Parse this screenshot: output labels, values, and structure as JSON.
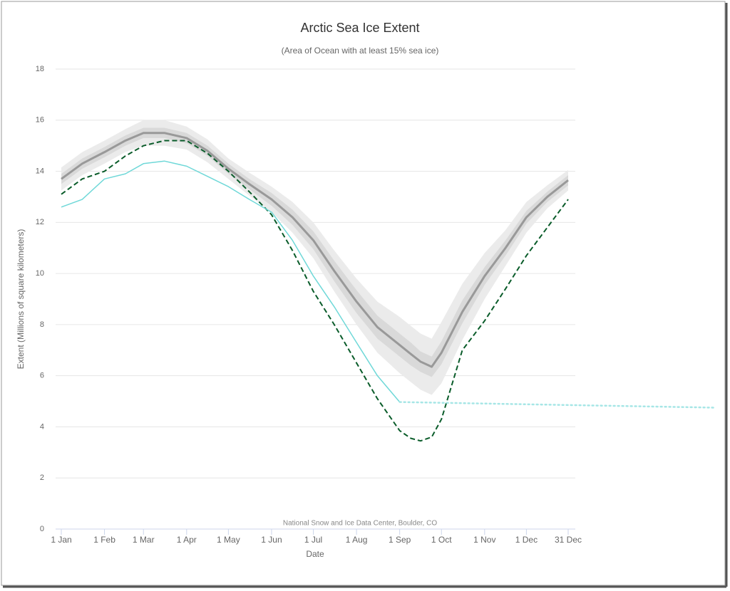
{
  "chart_data": {
    "type": "line",
    "title": "Arctic Sea Ice Extent",
    "subtitle": "(Area of Ocean with at least 15% sea ice)",
    "y_label": "Extent (Millions of square kilometers)",
    "x_label": "Date",
    "credit": "National Snow and Ice Data Center, Boulder, CO",
    "xlim": [
      0,
      364
    ],
    "xticks": [
      {
        "value": 0,
        "label": "1 Jan"
      },
      {
        "value": 31,
        "label": "1 Feb"
      },
      {
        "value": 59,
        "label": "1 Mar"
      },
      {
        "value": 90,
        "label": "1 Apr"
      },
      {
        "value": 120,
        "label": "1 May"
      },
      {
        "value": 151,
        "label": "1 Jun"
      },
      {
        "value": 181,
        "label": "1 Jul"
      },
      {
        "value": 212,
        "label": "1 Aug"
      },
      {
        "value": 243,
        "label": "1 Sep"
      },
      {
        "value": 273,
        "label": "1 Oct"
      },
      {
        "value": 304,
        "label": "1 Nov"
      },
      {
        "value": 334,
        "label": "1 Dec"
      },
      {
        "value": 364,
        "label": "31 Dec"
      }
    ],
    "ylim": [
      0,
      18
    ],
    "yticks": [
      0,
      2,
      4,
      6,
      8,
      10,
      12,
      14,
      16,
      18
    ],
    "grid": true,
    "bands": [
      {
        "color": "#ebebeb",
        "x": [
          0,
          15,
          31,
          46,
          59,
          74,
          90,
          105,
          120,
          135,
          151,
          166,
          181,
          196,
          212,
          227,
          243,
          251,
          258,
          266,
          273,
          288,
          304,
          319,
          334,
          349,
          364
        ],
        "lower": [
          13.25,
          13.85,
          14.3,
          14.75,
          15.0,
          15.0,
          14.85,
          14.35,
          13.7,
          13.05,
          12.4,
          11.6,
          10.6,
          9.3,
          8.0,
          6.9,
          6.1,
          5.75,
          5.45,
          5.25,
          5.7,
          7.4,
          9.0,
          10.3,
          11.6,
          12.55,
          13.25
        ],
        "upper": [
          14.15,
          14.75,
          15.2,
          15.65,
          16.0,
          16.0,
          15.75,
          15.25,
          14.5,
          13.95,
          13.4,
          12.8,
          12.0,
          10.9,
          9.8,
          8.9,
          8.3,
          7.95,
          7.65,
          7.45,
          8.1,
          9.6,
          10.8,
          11.7,
          12.8,
          13.45,
          14.05
        ]
      },
      {
        "color": "#d9d9d9",
        "x": [
          0,
          15,
          31,
          46,
          59,
          74,
          90,
          105,
          120,
          135,
          151,
          166,
          181,
          196,
          212,
          227,
          243,
          251,
          258,
          266,
          273,
          288,
          304,
          319,
          334,
          349,
          364
        ],
        "lower": [
          13.5,
          14.1,
          14.55,
          15.0,
          15.3,
          15.3,
          15.1,
          14.6,
          13.9,
          13.3,
          12.65,
          11.9,
          10.95,
          9.7,
          8.45,
          7.45,
          6.75,
          6.4,
          6.15,
          5.95,
          6.45,
          8.05,
          9.55,
          10.7,
          11.95,
          12.8,
          13.45
        ],
        "upper": [
          13.9,
          14.5,
          14.95,
          15.4,
          15.7,
          15.7,
          15.5,
          15.0,
          14.3,
          13.7,
          13.15,
          12.5,
          11.65,
          10.5,
          9.35,
          8.35,
          7.65,
          7.3,
          6.95,
          6.75,
          7.35,
          8.95,
          10.25,
          11.3,
          12.45,
          13.2,
          13.85
        ]
      }
    ],
    "series": [
      {
        "color": "#999999",
        "width": 3,
        "dash": "solid",
        "x": [
          0,
          15,
          31,
          46,
          59,
          74,
          90,
          105,
          120,
          135,
          151,
          166,
          181,
          196,
          212,
          227,
          243,
          251,
          258,
          266,
          273,
          288,
          304,
          319,
          334,
          349,
          364
        ],
        "values": [
          13.7,
          14.3,
          14.75,
          15.2,
          15.5,
          15.5,
          15.3,
          14.8,
          14.1,
          13.5,
          12.9,
          12.2,
          11.3,
          10.1,
          8.9,
          7.9,
          7.2,
          6.85,
          6.55,
          6.35,
          6.9,
          8.5,
          9.9,
          11.0,
          12.2,
          13.0,
          13.65
        ]
      },
      {
        "color": "#0a5c2a",
        "width": 2,
        "dash": "dashed",
        "x": [
          0,
          15,
          31,
          46,
          59,
          74,
          90,
          105,
          120,
          135,
          151,
          166,
          181,
          196,
          212,
          227,
          243,
          251,
          258,
          266,
          273,
          288,
          304,
          319,
          334,
          349,
          364
        ],
        "values": [
          13.1,
          13.7,
          14.0,
          14.6,
          15.0,
          15.2,
          15.2,
          14.7,
          14.0,
          13.2,
          12.3,
          10.9,
          9.3,
          8.0,
          6.5,
          5.1,
          3.85,
          3.55,
          3.45,
          3.6,
          4.3,
          7.0,
          8.15,
          9.4,
          10.7,
          11.8,
          12.9
        ]
      },
      {
        "color": "#6fd8d8",
        "width": 1.5,
        "dash": "solid",
        "x": [
          0,
          15,
          31,
          46,
          59,
          74,
          90,
          105,
          120,
          135,
          151,
          166,
          181,
          196,
          212,
          227,
          243
        ],
        "values": [
          12.6,
          12.9,
          13.7,
          13.9,
          14.3,
          14.4,
          14.2,
          13.8,
          13.4,
          12.9,
          12.4,
          11.3,
          9.9,
          8.7,
          7.3,
          6.0,
          4.97
        ]
      },
      {
        "color": "#a6e6e6",
        "width": 2.5,
        "dash": "dotted",
        "x": [
          243,
          470
        ],
        "values": [
          4.97,
          4.75
        ]
      }
    ]
  }
}
